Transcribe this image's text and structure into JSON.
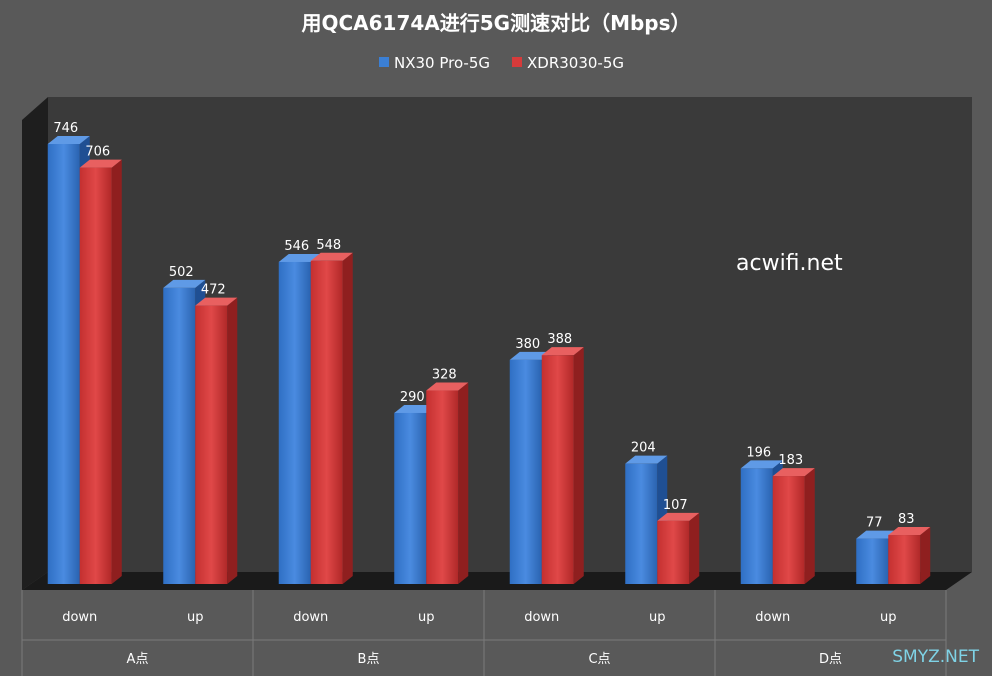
{
  "chart_data": {
    "type": "bar",
    "title": "用QCA6174A进行5G测速对比（Mbps）",
    "groups": [
      "A点",
      "B点",
      "C点",
      "D点"
    ],
    "categories": [
      "down",
      "up",
      "down",
      "up",
      "down",
      "up",
      "down",
      "up"
    ],
    "series": [
      {
        "name": "NX30 Pro-5G",
        "color": "#3b7fd4",
        "values": [
          746,
          502,
          546,
          290,
          380,
          204,
          196,
          77
        ]
      },
      {
        "name": "XDR3030-5G",
        "color": "#d63b3b",
        "values": [
          706,
          472,
          548,
          328,
          388,
          107,
          183,
          83
        ]
      }
    ],
    "ylim": [
      0,
      800
    ],
    "grid": false,
    "legend": "top"
  },
  "watermark": "acwifi.net",
  "corner_mark": "SMYZ.NET"
}
